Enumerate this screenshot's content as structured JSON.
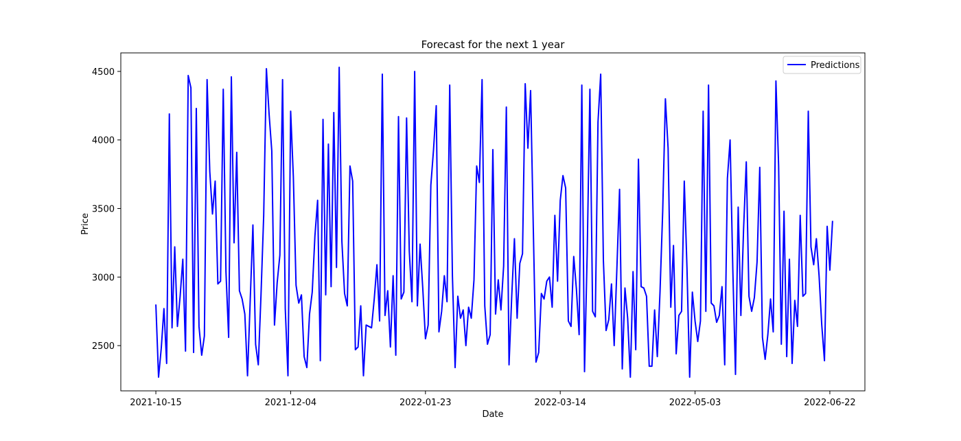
{
  "chart_data": {
    "type": "line",
    "title": "Forecast for the next 1 year",
    "xlabel": "Date",
    "ylabel": "Price",
    "x_start": "2021-10-15",
    "x_end": "2022-06-22",
    "xlim": [
      "2021-10-02",
      "2022-07-05"
    ],
    "ylim": [
      2170,
      4635
    ],
    "x_ticks": [
      "2021-10-15",
      "2021-12-04",
      "2022-01-23",
      "2022-03-14",
      "2022-05-03",
      "2022-06-22"
    ],
    "y_ticks": [
      2500,
      3000,
      3500,
      4000,
      4500
    ],
    "grid": false,
    "legend_position": "top-right",
    "series": [
      {
        "name": "Predictions",
        "color": "#0000ff",
        "values": [
          2800,
          2270,
          2480,
          2770,
          2370,
          4190,
          2630,
          3220,
          2640,
          2860,
          3130,
          2460,
          4470,
          4380,
          2450,
          4230,
          2640,
          2430,
          2570,
          4440,
          3770,
          3460,
          3700,
          2950,
          2970,
          4370,
          3040,
          2560,
          4460,
          3250,
          3910,
          2900,
          2840,
          2730,
          2280,
          2830,
          3380,
          2510,
          2360,
          2870,
          3450,
          4520,
          4190,
          3920,
          2650,
          2960,
          3160,
          4440,
          2770,
          2280,
          4210,
          3730,
          2940,
          2810,
          2870,
          2420,
          2340,
          2730,
          2890,
          3300,
          3560,
          2390,
          4150,
          2870,
          3970,
          2930,
          4200,
          3070,
          4530,
          3260,
          2880,
          2790,
          3810,
          3700,
          2470,
          2490,
          2790,
          2280,
          2650,
          2640,
          2630,
          2840,
          3090,
          2680,
          4480,
          2720,
          2900,
          2490,
          3010,
          2430,
          4170,
          2840,
          2890,
          4160,
          3190,
          2820,
          4500,
          2790,
          3240,
          2920,
          2550,
          2650,
          3670,
          3930,
          4250,
          2600,
          2750,
          3010,
          2820,
          4400,
          3010,
          2340,
          2860,
          2700,
          2760,
          2500,
          2780,
          2700,
          2980,
          3810,
          3690,
          4440,
          2790,
          2510,
          2580,
          3930,
          2730,
          2980,
          2760,
          3080,
          4240,
          2360,
          2860,
          3280,
          2700,
          3100,
          3170,
          4410,
          3940,
          4360,
          3360,
          2380,
          2450,
          2880,
          2840,
          2970,
          3000,
          2780,
          3450,
          2970,
          3560,
          3740,
          3650,
          2680,
          2640,
          3150,
          2910,
          2580,
          4400,
          2310,
          3180,
          4370,
          2750,
          2710,
          4130,
          4480,
          3120,
          2610,
          2690,
          2950,
          2500,
          3060,
          3640,
          2330,
          2920,
          2700,
          2270,
          3040,
          2470,
          3860,
          2930,
          2920,
          2860,
          2350,
          2350,
          2760,
          2420,
          2890,
          3480,
          4300,
          3940,
          2780,
          3230,
          2440,
          2720,
          2750,
          3700,
          3070,
          2270,
          2890,
          2680,
          2530,
          2680,
          4210,
          2750,
          4400,
          2810,
          2790,
          2670,
          2720,
          2930,
          2360,
          3720,
          4000,
          3060,
          2290,
          3510,
          2720,
          3350,
          3840,
          2860,
          2750,
          2850,
          3110,
          3800,
          2560,
          2400,
          2580,
          2840,
          2600,
          4430,
          3810,
          2510,
          3480,
          2420,
          3130,
          2370,
          2830,
          2640,
          3450,
          2860,
          2880,
          4210,
          3220,
          3090,
          3280,
          3010,
          2650,
          2390,
          3370,
          3050,
          3410
        ]
      }
    ]
  }
}
